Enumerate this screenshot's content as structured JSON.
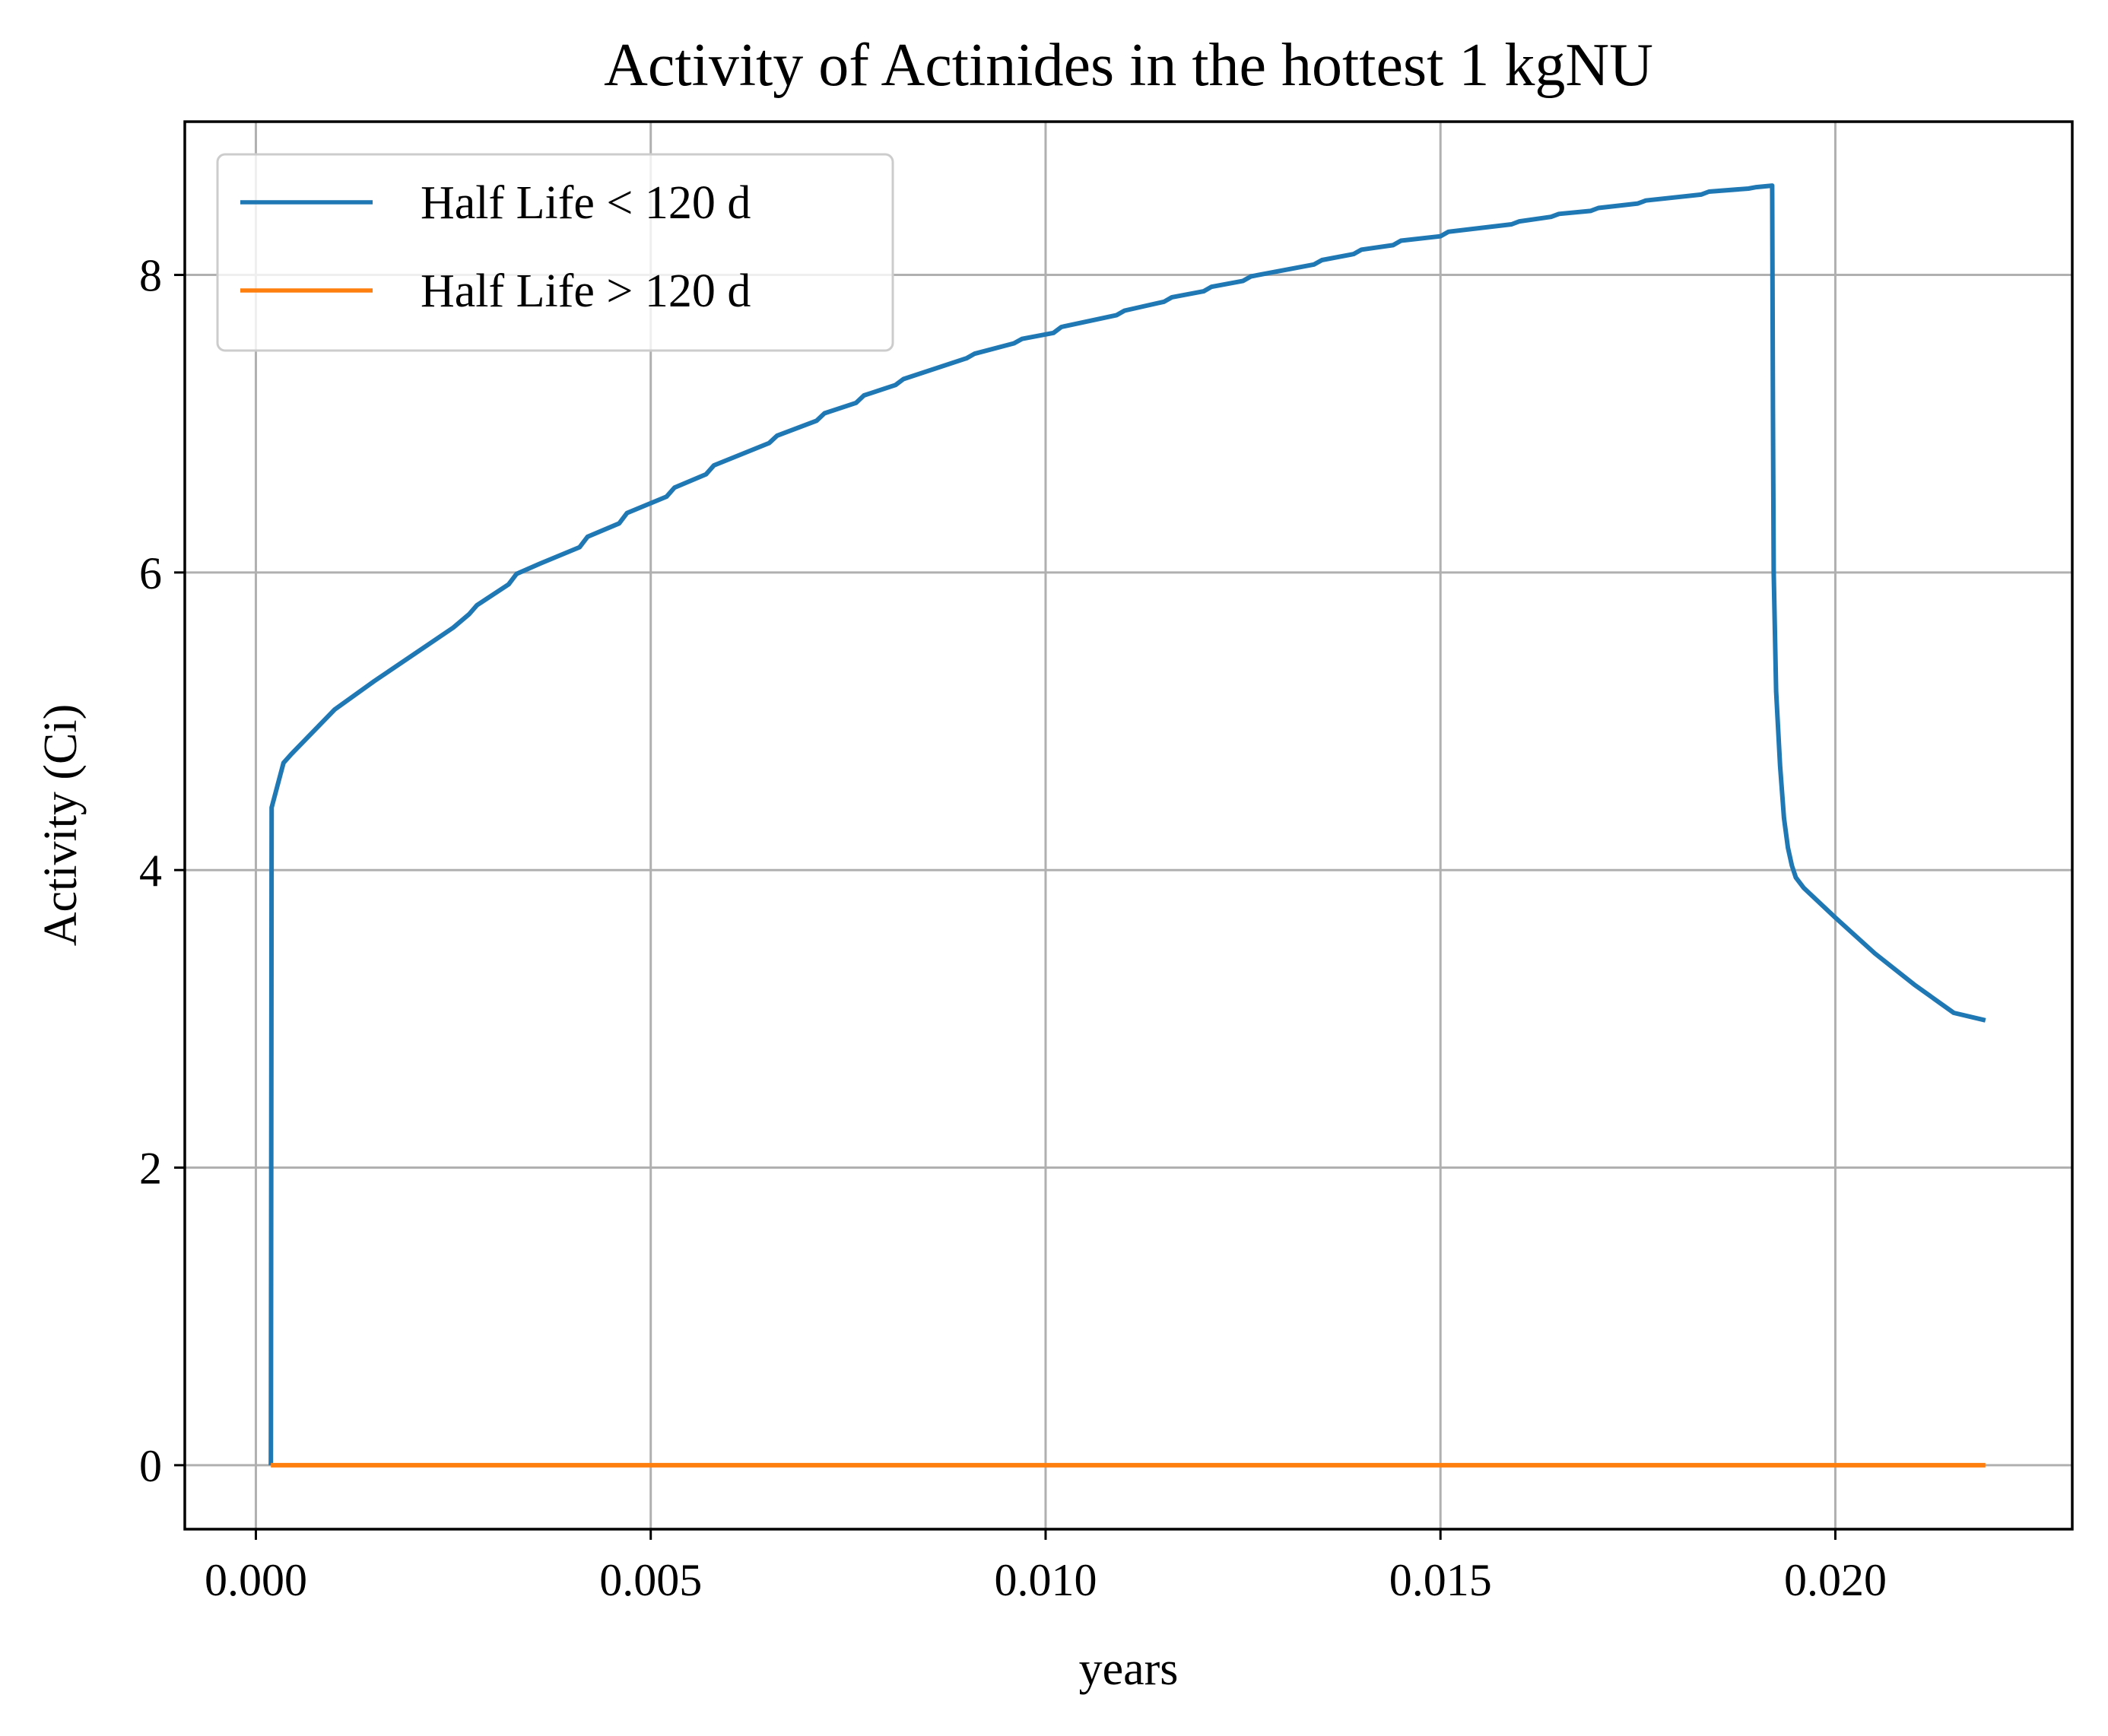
{
  "chart_data": {
    "type": "line",
    "title": "Activity of Actinides in the hottest 1 kgNU",
    "xlabel": "years",
    "ylabel": "Activity (Ci)",
    "xlim": [
      -0.0009,
      0.023
    ],
    "ylim": [
      -0.43,
      9.03
    ],
    "xticks": [
      0.0,
      0.005,
      0.01,
      0.015,
      0.02
    ],
    "xtick_labels": [
      "0.000",
      "0.005",
      "0.010",
      "0.015",
      "0.020"
    ],
    "yticks": [
      0,
      2,
      4,
      6,
      8
    ],
    "ytick_labels": [
      "0",
      "2",
      "4",
      "6",
      "8"
    ],
    "grid": true,
    "legend": {
      "position": "top-left"
    },
    "series": [
      {
        "name": "Half Life < 120 d",
        "color": "#1f77b4",
        "points": [
          [
            0.00019,
            0.0
          ],
          [
            0.0002,
            4.42
          ],
          [
            0.00035,
            4.72
          ],
          [
            0.00045,
            4.78
          ],
          [
            0.001,
            5.08
          ],
          [
            0.0015,
            5.27
          ],
          [
            0.002,
            5.45
          ],
          [
            0.0025,
            5.63
          ],
          [
            0.0027,
            5.72
          ],
          [
            0.0028,
            5.78
          ],
          [
            0.0032,
            5.92
          ],
          [
            0.0033,
            5.99
          ],
          [
            0.0036,
            6.06
          ],
          [
            0.0041,
            6.17
          ],
          [
            0.0042,
            6.24
          ],
          [
            0.0046,
            6.33
          ],
          [
            0.0047,
            6.4
          ],
          [
            0.0052,
            6.51
          ],
          [
            0.0053,
            6.57
          ],
          [
            0.0057,
            6.66
          ],
          [
            0.0058,
            6.72
          ],
          [
            0.0065,
            6.87
          ],
          [
            0.0066,
            6.92
          ],
          [
            0.0071,
            7.02
          ],
          [
            0.0072,
            7.07
          ],
          [
            0.0076,
            7.14
          ],
          [
            0.0077,
            7.19
          ],
          [
            0.0081,
            7.26
          ],
          [
            0.0082,
            7.3
          ],
          [
            0.009,
            7.44
          ],
          [
            0.0091,
            7.47
          ],
          [
            0.0096,
            7.54
          ],
          [
            0.0097,
            7.57
          ],
          [
            0.0101,
            7.61
          ],
          [
            0.0102,
            7.65
          ],
          [
            0.0109,
            7.73
          ],
          [
            0.011,
            7.76
          ],
          [
            0.0115,
            7.82
          ],
          [
            0.0116,
            7.85
          ],
          [
            0.012,
            7.89
          ],
          [
            0.0121,
            7.92
          ],
          [
            0.0125,
            7.96
          ],
          [
            0.0126,
            7.99
          ],
          [
            0.0134,
            8.07
          ],
          [
            0.0135,
            8.1
          ],
          [
            0.0139,
            8.14
          ],
          [
            0.014,
            8.17
          ],
          [
            0.0144,
            8.2
          ],
          [
            0.0145,
            8.23
          ],
          [
            0.015,
            8.26
          ],
          [
            0.0151,
            8.29
          ],
          [
            0.0159,
            8.34
          ],
          [
            0.016,
            8.36
          ],
          [
            0.0164,
            8.39
          ],
          [
            0.0165,
            8.41
          ],
          [
            0.0169,
            8.43
          ],
          [
            0.017,
            8.45
          ],
          [
            0.0175,
            8.48
          ],
          [
            0.0176,
            8.5
          ],
          [
            0.0183,
            8.54
          ],
          [
            0.0184,
            8.56
          ],
          [
            0.0189,
            8.58
          ],
          [
            0.019,
            8.59
          ],
          [
            0.0192,
            8.6
          ],
          [
            0.01921,
            7.1
          ],
          [
            0.01922,
            6.0
          ],
          [
            0.01925,
            5.2
          ],
          [
            0.0193,
            4.7
          ],
          [
            0.01935,
            4.35
          ],
          [
            0.0194,
            4.15
          ],
          [
            0.01945,
            4.03
          ],
          [
            0.0195,
            3.95
          ],
          [
            0.0196,
            3.88
          ],
          [
            0.02,
            3.68
          ],
          [
            0.0205,
            3.44
          ],
          [
            0.021,
            3.23
          ],
          [
            0.0215,
            3.04
          ],
          [
            0.0219,
            2.99
          ]
        ]
      },
      {
        "name": "Half Life > 120 d",
        "color": "#ff7f0e",
        "points": [
          [
            0.00019,
            0.0
          ],
          [
            0.0219,
            0.0
          ]
        ]
      }
    ]
  }
}
